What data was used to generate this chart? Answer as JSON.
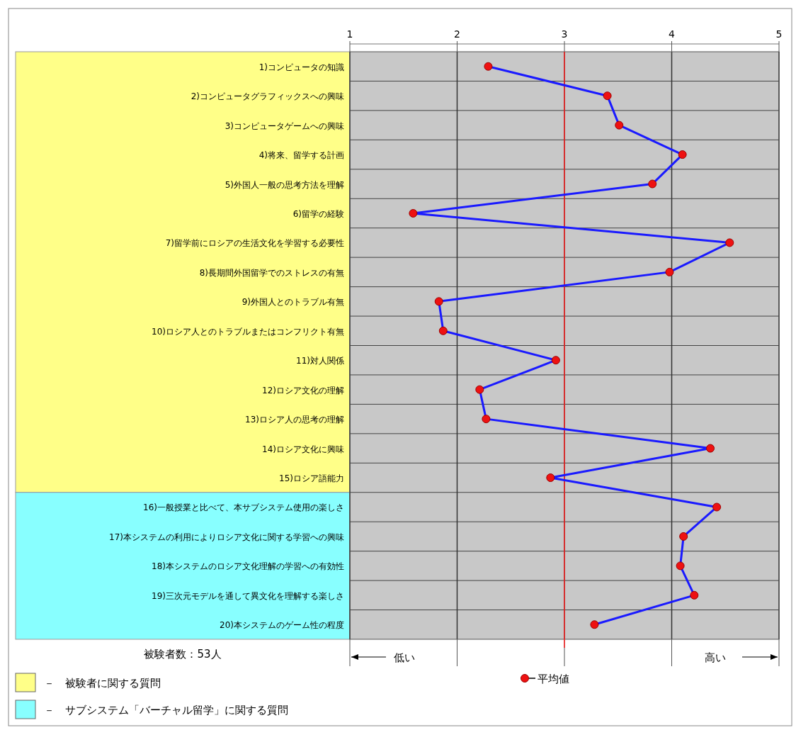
{
  "chart_data": {
    "type": "line",
    "orientation": "horizontal",
    "categories": [
      "1)コンピュータの知識",
      "2)コンピュータグラフィックスへの興味",
      "3)コンピュータゲームへの興味",
      "4)将来、留学する計画",
      "5)外国人一般の思考方法を理解",
      "6)留学の経験",
      "7)留学前にロシアの生活文化を学習する必要性",
      "8)長期間外国留学でのストレスの有無",
      "9)外国人とのトラブル有無",
      "10)ロシア人とのトラブルまたはコンフリクト有無",
      "11)対人関係",
      "12)ロシア文化の理解",
      "13)ロシア人の思考の理解",
      "14)ロシア文化に興味",
      "15)ロシア語能力",
      "16)一般授業と比べて、本サブシステム使用の楽しさ",
      "17)本システムの利用によりロシア文化に関する学習への興味",
      "18)本システムのロシア文化理解の学習への有効性",
      "19)三次元モデルを通して異文化を理解する楽しさ",
      "20)本システムのゲーム性の程度"
    ],
    "series": [
      {
        "name": "平均値",
        "color": "#1a1aff",
        "colors": [
          "#ee1111",
          "#ee1111",
          "#ee1111",
          "#ee1111",
          "#ee1111",
          "#ee1111",
          "#ee1111",
          "#ee1111",
          "#ee1111",
          "#ee1111",
          "#ee1111",
          "#ee1111",
          "#ee1111",
          "#ee1111",
          "#ee1111",
          "#ee1111",
          "#ee1111",
          "#ee1111",
          "#ee1111",
          "#ee1111"
        ],
        "values": [
          2.29,
          3.4,
          3.51,
          4.1,
          3.82,
          1.59,
          4.54,
          3.98,
          1.83,
          1.87,
          2.92,
          2.21,
          2.27,
          4.36,
          2.87,
          4.42,
          4.11,
          4.08,
          4.21,
          3.28
        ]
      }
    ],
    "xlim": [
      1,
      5
    ],
    "xticks": [
      1,
      2,
      3,
      4,
      5
    ],
    "ref_lines": [
      {
        "axis": "x",
        "value": 3,
        "color": "#ff2222"
      }
    ],
    "annotations": [
      "被験者数：53人",
      "低い",
      "高い",
      "－　被験者に関する質問",
      "－　サブシステム「バーチャル留学」に関する質問"
    ],
    "grid": true,
    "marker": "circle",
    "line_style": "solid",
    "legend": "bottom"
  }
}
